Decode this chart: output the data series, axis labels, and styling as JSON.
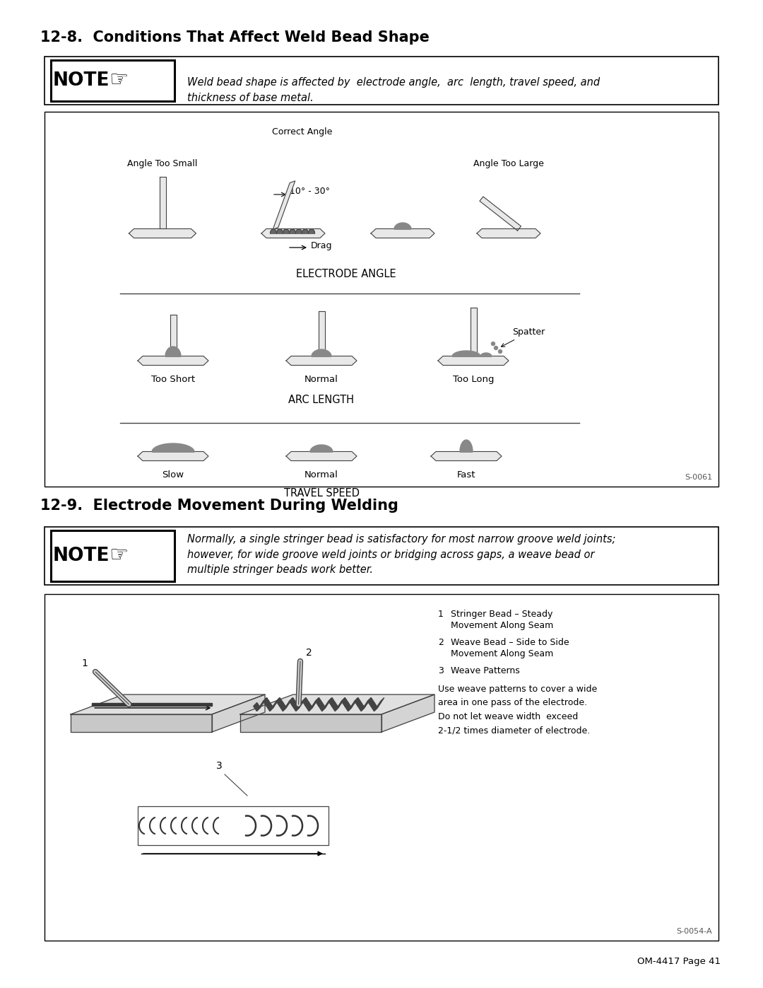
{
  "title_12_8": "12-8.  Conditions That Affect Weld Bead Shape",
  "title_12_9": "12-9.  Electrode Movement During Welding",
  "note1_text": "Weld bead shape is affected by  electrode angle,  arc  length, travel speed, and\nthickness of base metal.",
  "note2_text": "Normally, a single stringer bead is satisfactory for most narrow groove weld joints;\nhowever, for wide groove weld joints or bridging across gaps, a weave bead or\nmultiple stringer beads work better.",
  "electrode_angle_label": "ELECTRODE ANGLE",
  "arc_length_label": "ARC LENGTH",
  "travel_speed_label": "TRAVEL SPEED",
  "drag_label": "Drag",
  "angle_too_small": "Angle Too Small",
  "correct_angle": "Correct Angle",
  "angle_too_large": "Angle Too Large",
  "too_short": "Too Short",
  "normal": "Normal",
  "too_long": "Too Long",
  "spatter": "Spatter",
  "slow": "Slow",
  "normal2": "Normal",
  "fast": "Fast",
  "s0061": "S-0061",
  "s0054a": "S-0054-A",
  "om_page": "OM-4417 Page 41",
  "bg_color": "#ffffff"
}
